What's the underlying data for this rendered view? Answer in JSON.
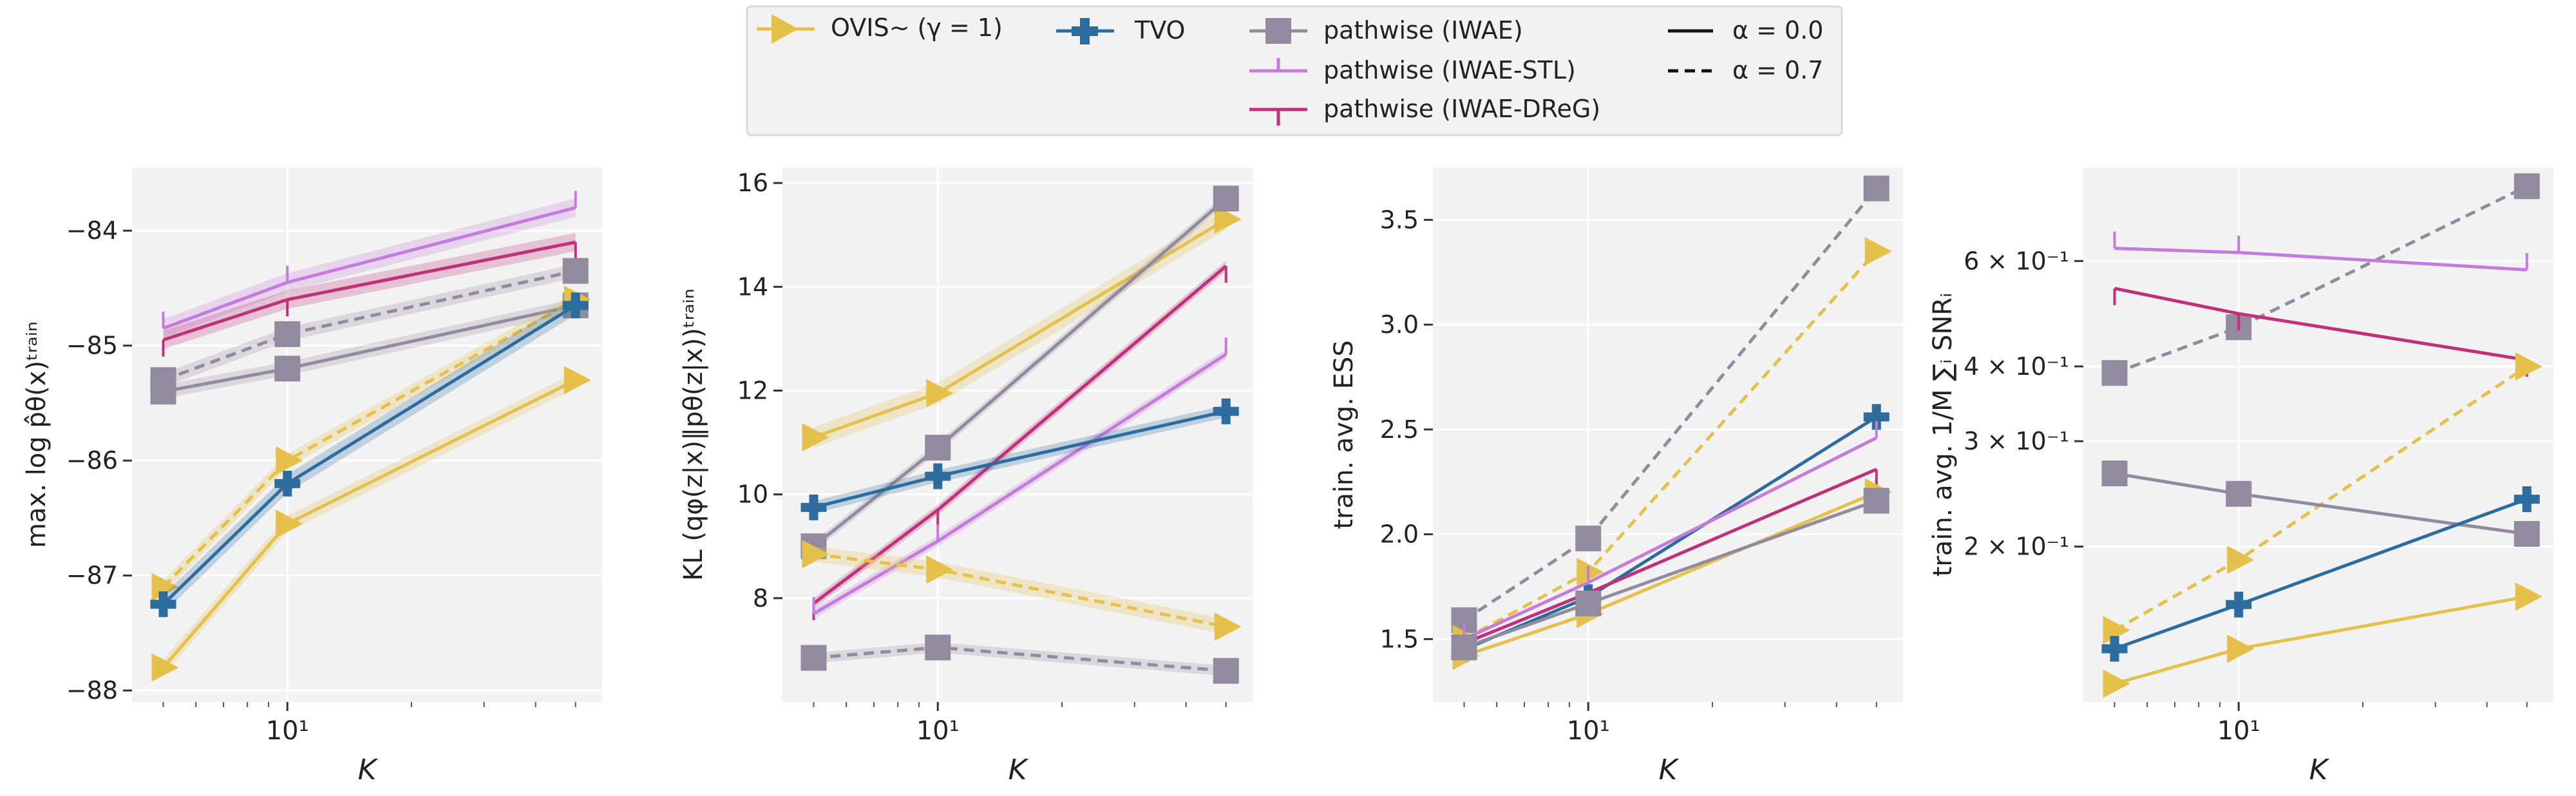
{
  "colors": {
    "ovis": "#E5C04A",
    "tvo": "#2C6C9E",
    "iwae": "#928A9E",
    "stl": "#C57BDC",
    "dreg": "#C0317A",
    "panel_bg": "#F2F2F2",
    "grid": "#FFFFFF"
  },
  "legend": {
    "entries": [
      {
        "label": "OVIS∼ (γ = 1)",
        "series": "ovis"
      },
      {
        "label": "TVO",
        "series": "tvo"
      },
      {
        "label": "pathwise (IWAE)",
        "series": "iwae"
      },
      {
        "label": "pathwise (IWAE-STL)",
        "series": "stl"
      },
      {
        "label": "pathwise (IWAE-DReG)",
        "series": "dreg"
      },
      {
        "label": "α = 0.0",
        "series": "solid"
      },
      {
        "label": "α = 0.7",
        "series": "dashed"
      }
    ]
  },
  "chart_data": [
    {
      "type": "line",
      "xscale": "log",
      "xlim": [
        4.2,
        58
      ],
      "ylim": [
        -88.1,
        -83.45
      ],
      "xticks": [
        {
          "value": 10,
          "label": "10¹"
        }
      ],
      "yticks": [
        {
          "value": -84,
          "label": "−84"
        },
        {
          "value": -85,
          "label": "−85"
        },
        {
          "value": -86,
          "label": "−86"
        },
        {
          "value": -87,
          "label": "−87"
        },
        {
          "value": -88,
          "label": "−88"
        }
      ],
      "xlabel": "K",
      "ylabel": "max. log p̂θ(x)ᵗʳᵃⁱⁿ",
      "x": [
        5,
        10,
        50
      ],
      "series": [
        {
          "key": "stl",
          "dash": false,
          "marker": "tick",
          "values": [
            -84.85,
            -84.45,
            -83.8
          ],
          "band": 0.08
        },
        {
          "key": "dreg",
          "dash": false,
          "marker": "tick",
          "values": [
            -84.95,
            -84.6,
            -84.1
          ],
          "band": 0.08
        },
        {
          "key": "iwae",
          "dash": true,
          "marker": "square",
          "values": [
            -85.3,
            -84.9,
            -84.35
          ],
          "band": 0.06
        },
        {
          "key": "iwae",
          "dash": false,
          "marker": "square",
          "values": [
            -85.4,
            -85.2,
            -84.65
          ],
          "band": 0.06
        },
        {
          "key": "ovis",
          "dash": true,
          "marker": "triangle",
          "values": [
            -87.1,
            -86.0,
            -84.6
          ],
          "band": 0.06
        },
        {
          "key": "tvo",
          "dash": false,
          "marker": "plus",
          "values": [
            -87.25,
            -86.2,
            -84.65
          ],
          "band": 0.08
        },
        {
          "key": "ovis",
          "dash": false,
          "marker": "triangle",
          "values": [
            -87.8,
            -86.55,
            -85.3
          ],
          "band": 0.07
        }
      ]
    },
    {
      "type": "line",
      "xscale": "log",
      "xlim": [
        4.2,
        58
      ],
      "ylim": [
        6.0,
        16.3
      ],
      "xticks": [
        {
          "value": 10,
          "label": "10¹"
        }
      ],
      "yticks": [
        {
          "value": 8,
          "label": "8"
        },
        {
          "value": 10,
          "label": "10"
        },
        {
          "value": 12,
          "label": "12"
        },
        {
          "value": 14,
          "label": "14"
        },
        {
          "value": 16,
          "label": "16"
        }
      ],
      "xlabel": "K",
      "ylabel": "KL (qφ(z|x)‖pθ(z|x))ᵗʳᵃⁱⁿ",
      "x": [
        5,
        10,
        50
      ],
      "series": [
        {
          "key": "ovis",
          "dash": false,
          "marker": "triangle",
          "values": [
            11.1,
            11.95,
            15.3
          ],
          "band": 0.2
        },
        {
          "key": "iwae",
          "dash": false,
          "marker": "square",
          "values": [
            9.0,
            10.9,
            15.7
          ],
          "band": 0.1
        },
        {
          "key": "dreg",
          "dash": false,
          "marker": "tick",
          "values": [
            7.9,
            9.7,
            14.4
          ],
          "band": 0.1
        },
        {
          "key": "stl",
          "dash": false,
          "marker": "tick",
          "values": [
            7.7,
            9.1,
            12.7
          ],
          "band": 0.1
        },
        {
          "key": "tvo",
          "dash": false,
          "marker": "plus",
          "values": [
            9.75,
            10.35,
            11.6
          ],
          "band": 0.12
        },
        {
          "key": "ovis",
          "dash": true,
          "marker": "triangle",
          "values": [
            8.85,
            8.55,
            7.45
          ],
          "band": 0.15
        },
        {
          "key": "iwae",
          "dash": true,
          "marker": "square",
          "values": [
            6.85,
            7.05,
            6.6
          ],
          "band": 0.1
        }
      ]
    },
    {
      "type": "line",
      "xscale": "log",
      "xlim": [
        4.2,
        58
      ],
      "ylim": [
        1.2,
        3.75
      ],
      "xticks": [
        {
          "value": 10,
          "label": "10¹"
        }
      ],
      "yticks": [
        {
          "value": 1.5,
          "label": "1.5"
        },
        {
          "value": 2.0,
          "label": "2.0"
        },
        {
          "value": 2.5,
          "label": "2.5"
        },
        {
          "value": 3.0,
          "label": "3.0"
        },
        {
          "value": 3.5,
          "label": "3.5"
        }
      ],
      "xlabel": "K",
      "ylabel": "train. avg. ESS",
      "x": [
        5,
        10,
        50
      ],
      "series": [
        {
          "key": "iwae",
          "dash": true,
          "marker": "square",
          "values": [
            1.59,
            1.98,
            3.65
          ],
          "band": 0
        },
        {
          "key": "ovis",
          "dash": true,
          "marker": "triangle",
          "values": [
            1.5,
            1.82,
            3.35
          ],
          "band": 0
        },
        {
          "key": "tvo",
          "dash": false,
          "marker": "plus",
          "values": [
            1.45,
            1.7,
            2.56
          ],
          "band": 0
        },
        {
          "key": "stl",
          "dash": false,
          "marker": "tick",
          "values": [
            1.5,
            1.77,
            2.46
          ],
          "band": 0
        },
        {
          "key": "dreg",
          "dash": false,
          "marker": "tick",
          "values": [
            1.48,
            1.72,
            2.31
          ],
          "band": 0
        },
        {
          "key": "ovis",
          "dash": false,
          "marker": "triangle",
          "values": [
            1.42,
            1.62,
            2.2
          ],
          "band": 0
        },
        {
          "key": "iwae",
          "dash": false,
          "marker": "square",
          "values": [
            1.46,
            1.67,
            2.16
          ],
          "band": 0
        }
      ]
    },
    {
      "type": "line",
      "xscale": "log",
      "yscale": "log",
      "xlim": [
        4.2,
        58
      ],
      "ylim": [
        0.11,
        0.86
      ],
      "xticks": [
        {
          "value": 10,
          "label": "10¹"
        }
      ],
      "yticks": [
        {
          "value": 0.6,
          "label": "6 × 10⁻¹"
        },
        {
          "value": 0.4,
          "label": "4 × 10⁻¹"
        },
        {
          "value": 0.3,
          "label": "3 × 10⁻¹"
        },
        {
          "value": 0.2,
          "label": "2 × 10⁻¹"
        }
      ],
      "xlabel": "K",
      "ylabel": "train. avg. 1/M ∑ᵢ SNRᵢ",
      "x": [
        5,
        10,
        50
      ],
      "series": [
        {
          "key": "iwae",
          "dash": true,
          "marker": "square",
          "values": [
            0.39,
            0.465,
            0.8
          ],
          "band": 0
        },
        {
          "key": "stl",
          "dash": false,
          "marker": "tick",
          "values": [
            0.63,
            0.62,
            0.58
          ],
          "band": 0
        },
        {
          "key": "dreg",
          "dash": false,
          "marker": "tick",
          "values": [
            0.54,
            0.49,
            0.41
          ],
          "band": 0
        },
        {
          "key": "ovis",
          "dash": true,
          "marker": "triangle",
          "values": [
            0.145,
            0.19,
            0.4
          ],
          "band": 0
        },
        {
          "key": "iwae",
          "dash": false,
          "marker": "square",
          "values": [
            0.265,
            0.245,
            0.21
          ],
          "band": 0
        },
        {
          "key": "tvo",
          "dash": false,
          "marker": "plus",
          "values": [
            0.135,
            0.16,
            0.24
          ],
          "band": 0
        },
        {
          "key": "ovis",
          "dash": false,
          "marker": "triangle",
          "values": [
            0.118,
            0.135,
            0.165
          ],
          "band": 0
        }
      ]
    }
  ]
}
